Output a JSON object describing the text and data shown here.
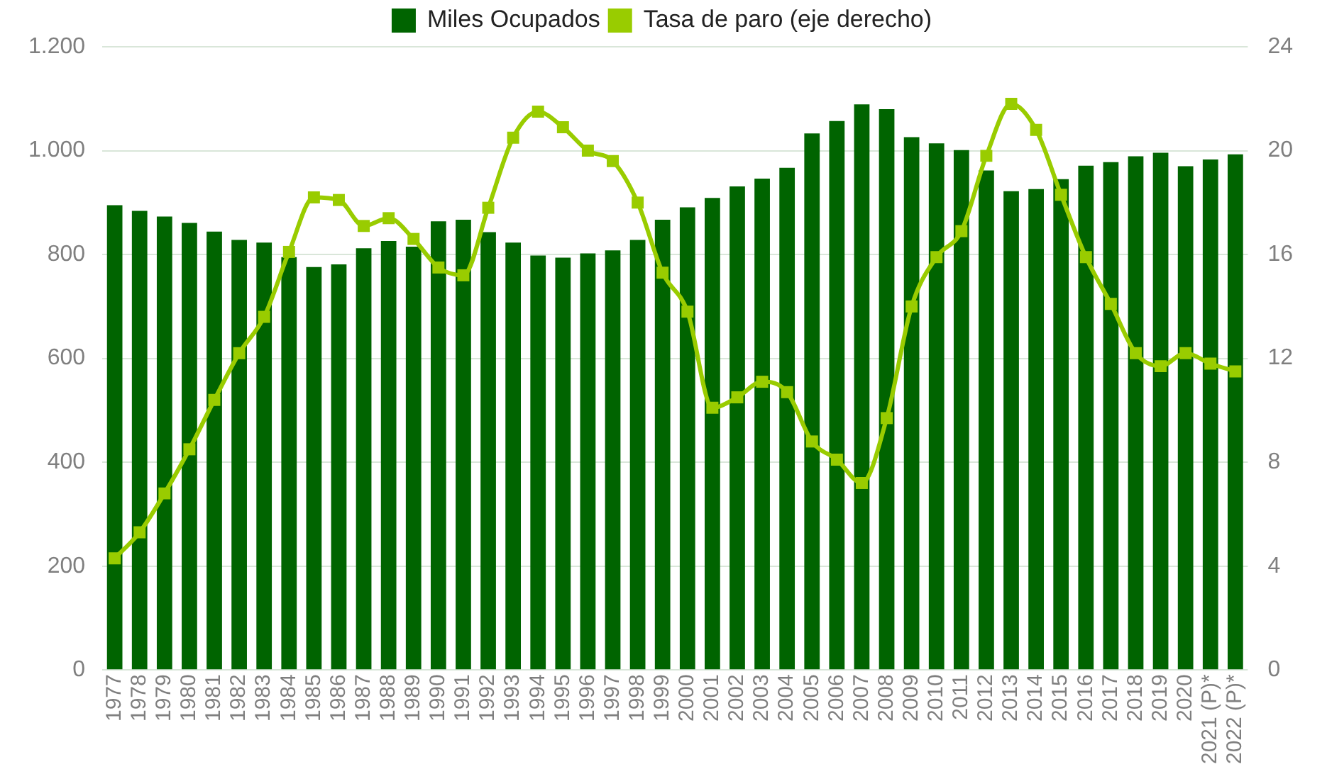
{
  "chart_data": {
    "type": "bar",
    "categories": [
      "1977",
      "1978",
      "1979",
      "1980",
      "1981",
      "1982",
      "1983",
      "1984",
      "1985",
      "1986",
      "1987",
      "1988",
      "1989",
      "1990",
      "1991",
      "1992",
      "1993",
      "1994",
      "1995",
      "1996",
      "1997",
      "1998",
      "1999",
      "2000",
      "2001",
      "2002",
      "2003",
      "2004",
      "2005",
      "2006",
      "2007",
      "2008",
      "2009",
      "2010",
      "2011",
      "2012",
      "2013",
      "2014",
      "2015",
      "2016",
      "2017",
      "2018",
      "2019",
      "2020",
      "2021 (P)*",
      "2022 (P)*"
    ],
    "series": [
      {
        "name": "Miles Ocupados",
        "color": "#006400",
        "values": [
          895,
          884,
          873,
          861,
          844,
          828,
          823,
          795,
          776,
          781,
          812,
          826,
          815,
          864,
          867,
          843,
          823,
          798,
          794,
          802,
          808,
          828,
          867,
          891,
          909,
          931,
          946,
          967,
          1033,
          1057,
          1089,
          1080,
          1026,
          1014,
          1001,
          962,
          922,
          926,
          945,
          971,
          978,
          989,
          996,
          970,
          983,
          993
        ]
      },
      {
        "name": "Tasa de paro (eje derecho)",
        "type": "line",
        "axis": "y2",
        "color": "#99cc00",
        "marker": "square",
        "values": [
          4.3,
          5.3,
          6.8,
          8.5,
          10.4,
          12.2,
          13.6,
          16.1,
          18.2,
          18.1,
          17.1,
          17.4,
          16.6,
          15.5,
          15.2,
          17.8,
          20.5,
          21.5,
          20.9,
          20.0,
          19.6,
          18.0,
          15.3,
          13.8,
          10.1,
          10.5,
          11.1,
          10.7,
          8.8,
          8.1,
          7.2,
          9.7,
          14.0,
          15.9,
          16.9,
          19.8,
          21.8,
          20.8,
          18.3,
          15.9,
          14.1,
          12.2,
          11.7,
          12.2,
          11.8,
          11.5
        ]
      }
    ],
    "ylim": [
      0,
      1200
    ],
    "yticks": [
      0,
      200,
      400,
      600,
      800,
      {
        "value": 1000,
        "label": "1.000"
      },
      {
        "value": 1200,
        "label": "1.200"
      }
    ],
    "y2lim": [
      0,
      24
    ],
    "y2ticks": [
      0,
      4,
      8,
      12,
      16,
      20,
      24
    ],
    "grid": "y",
    "legend": "top"
  }
}
